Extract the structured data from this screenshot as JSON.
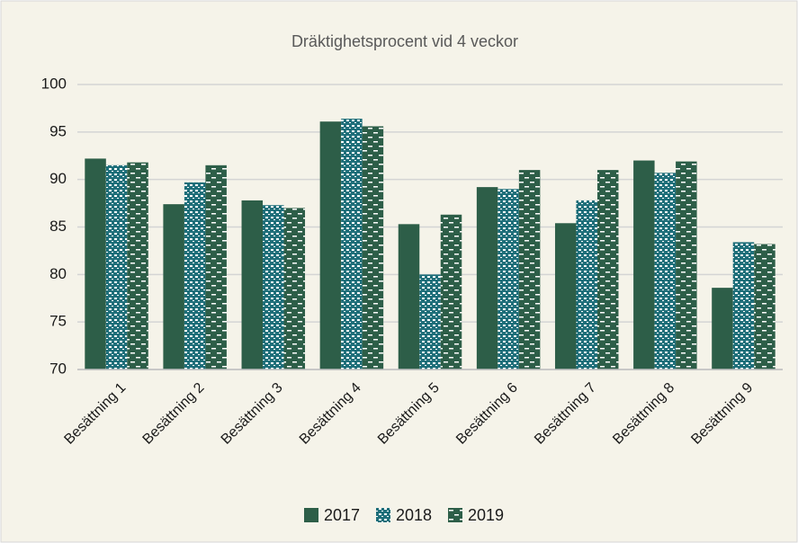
{
  "chart_data": {
    "type": "bar",
    "title": "Dräktighetsprocent vid 4 veckor",
    "categories": [
      "Besättning 1",
      "Besättning 2",
      "Besättning 3",
      "Besättning 4",
      "Besättning 5",
      "Besättning 6",
      "Besättning 7",
      "Besättning 8",
      "Besättning 9"
    ],
    "series": [
      {
        "name": "2017",
        "color": "#2d5e48",
        "pattern": "solid",
        "values": [
          92.2,
          87.4,
          87.8,
          96.1,
          85.3,
          89.2,
          85.4,
          92.0,
          78.6
        ]
      },
      {
        "name": "2018",
        "color": "#1f6f7a",
        "pattern": "dots",
        "values": [
          91.5,
          89.7,
          87.3,
          96.4,
          80.0,
          89.0,
          87.8,
          90.7,
          83.4
        ]
      },
      {
        "name": "2019",
        "color": "#2d5e48",
        "pattern": "dashes",
        "values": [
          91.8,
          91.5,
          87.0,
          95.6,
          86.3,
          91.0,
          91.0,
          91.9,
          83.2
        ]
      }
    ],
    "ylim": [
      70,
      100
    ],
    "yticks": [
      70,
      75,
      80,
      85,
      90,
      95,
      100
    ],
    "grid": true,
    "legend": "bottom"
  }
}
